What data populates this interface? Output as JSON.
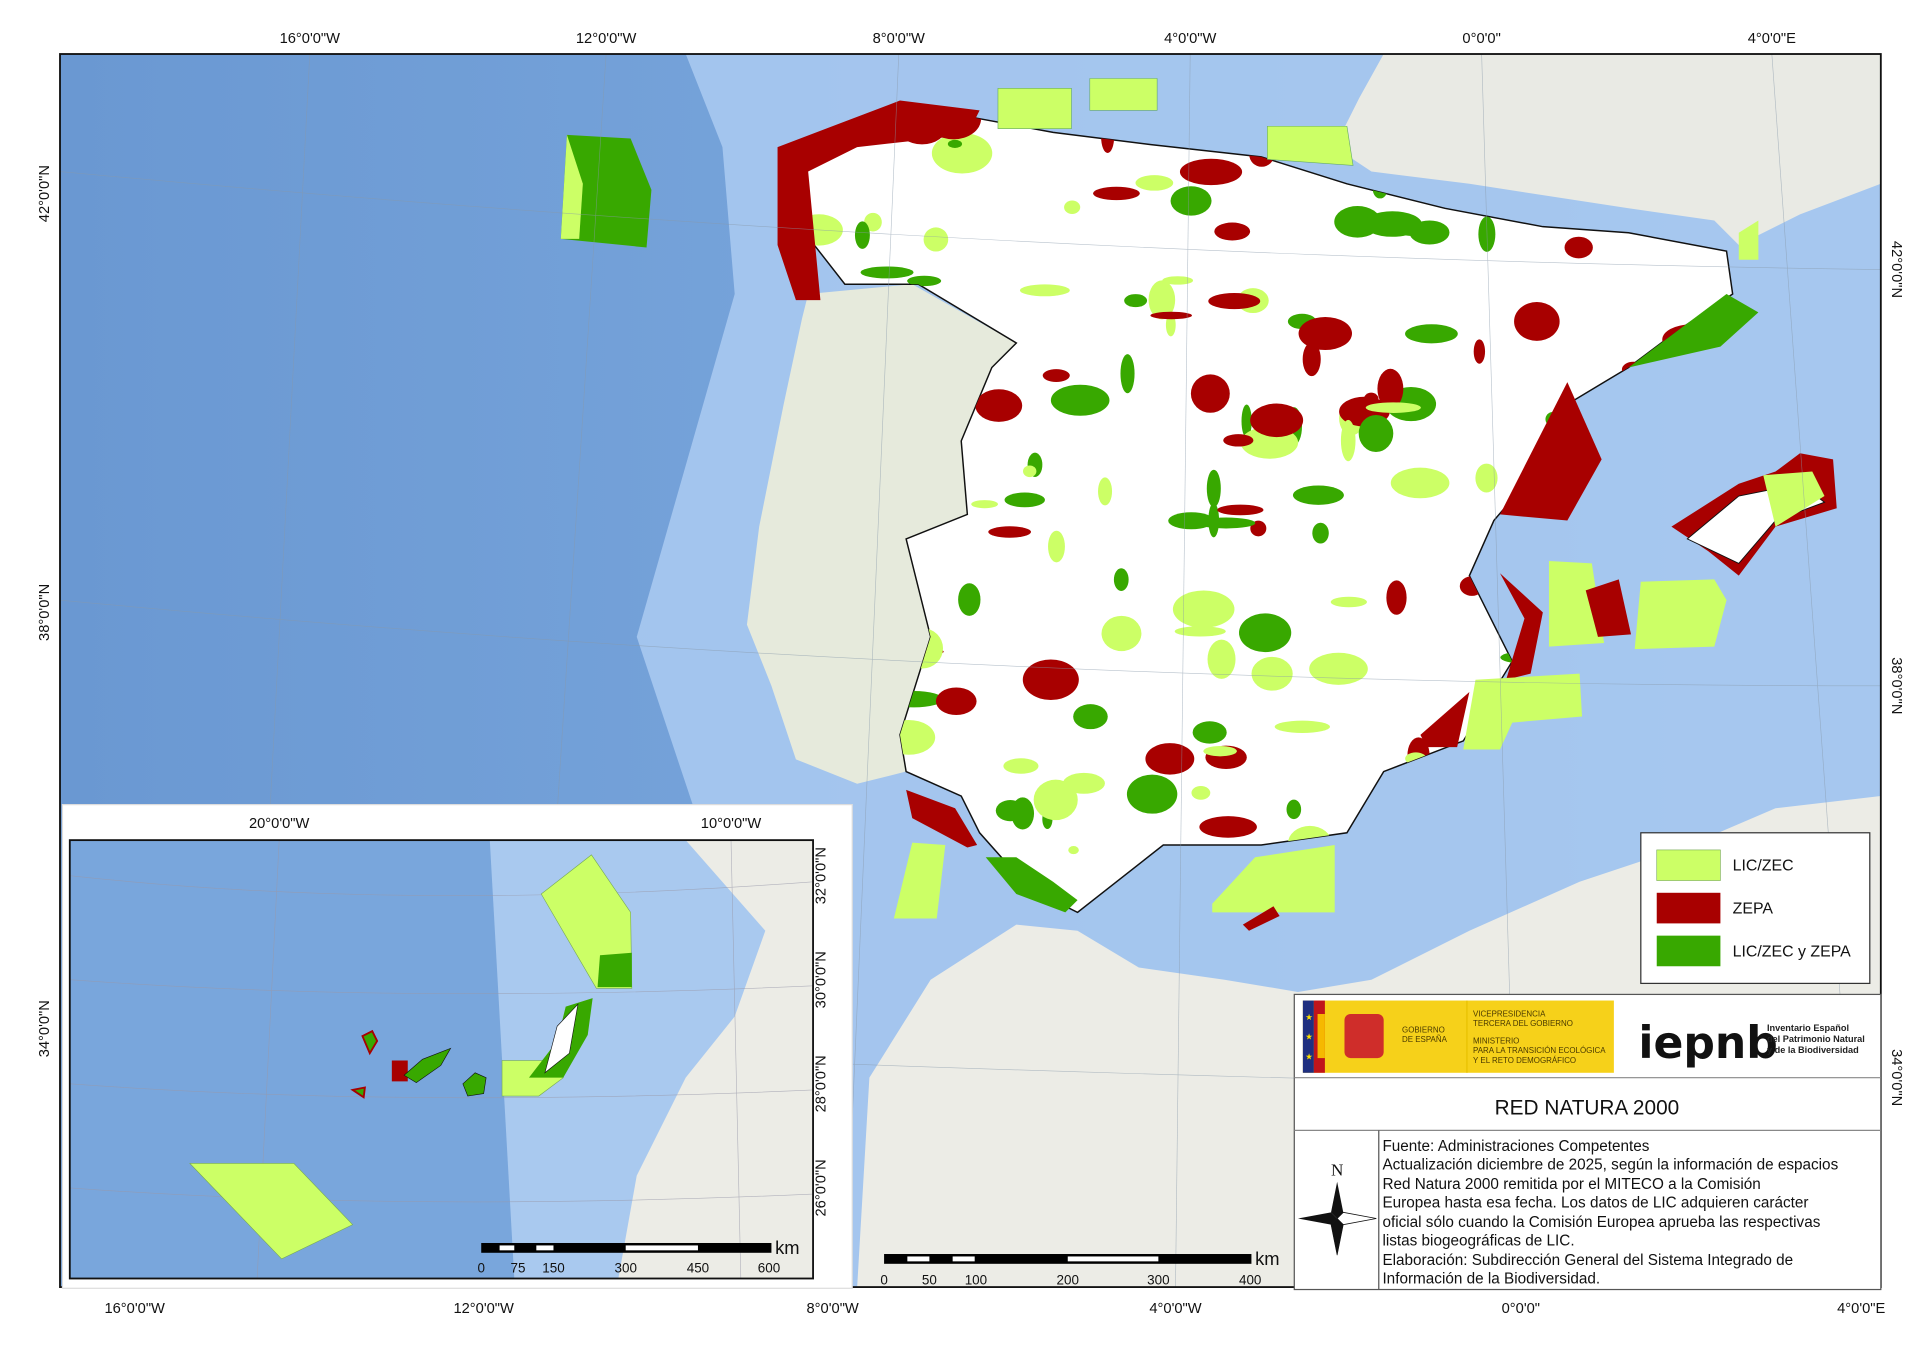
{
  "title": "RED NATURA 2000",
  "legend": {
    "items": [
      {
        "label": "LIC/ZEC",
        "color": "#ccff66"
      },
      {
        "label": "ZEPA",
        "color": "#a80000"
      },
      {
        "label": "LIC/ZEC y ZEPA",
        "color": "#38a800"
      }
    ]
  },
  "main_map": {
    "top_labels": [
      "16°0'0\"W",
      "12°0'0\"W",
      "8°0'0\"W",
      "4°0'0\"W",
      "0°0'0\"",
      "4°0'0\"E"
    ],
    "bottom_labels": [
      "16°0'0\"W",
      "12°0'0\"W",
      "8°0'0\"W",
      "4°0'0\"W",
      "0°0'0\"",
      "4°0'0\"E"
    ],
    "left_labels": [
      "42°0'0\"N",
      "38°0'0\"N"
    ],
    "right_labels": [
      "42°0'0\"N",
      "38°0'0\"N",
      "34°0'0\"N"
    ],
    "scale": {
      "labels": [
        "0",
        "50",
        "100",
        "200",
        "300",
        "400"
      ],
      "unit": "km"
    }
  },
  "inset_map": {
    "top_labels": [
      "20°0'0\"W",
      "10°0'0\"W"
    ],
    "right_labels": [
      "32°0'0\"N",
      "30°0'0\"N",
      "28°0'0\"N",
      "26°0'0\"N"
    ],
    "left_labels": [
      "34°0'0\"N"
    ],
    "scale": {
      "labels": [
        "0",
        "75",
        "150",
        "300",
        "450",
        "600"
      ],
      "unit": "km"
    }
  },
  "logos": {
    "gobierno": [
      "GOBIERNO",
      "DE ESPAÑA"
    ],
    "ministerio": [
      "VICEPRESIDENCIA",
      "TERCERA DEL GOBIERNO",
      "MINISTERIO",
      "PARA LA TRANSICIÓN ECOLÓGICA",
      "Y EL RETO DEMOGRÁFICO"
    ],
    "iepnb_mark": "iepnb",
    "iepnb_text": [
      "Inventario Español",
      "del Patrimonio Natural",
      "y de la Biodiversidad"
    ]
  },
  "north_arrow_label": "N",
  "info_lines": [
    "Fuente: Administraciones Competentes",
    "Actualización diciembre de 2025, según la información de espacios",
    "Red Natura 2000 remitida por el MITECO a la Comisión",
    "Europea hasta esa fecha. Los datos de LIC adquieren carácter",
    "oficial sólo cuando la Comisión Europea aprueba las respectivas",
    "listas biogeográficas de LIC.",
    "Elaboración: Subdirección General del Sistema Integrado de",
    "Información de la Biodiversidad."
  ],
  "colors": {
    "ocean": "#6f9fd8",
    "shelf": "#a9c9ef",
    "land": "#ecebe6",
    "spain": "#ffffff"
  }
}
